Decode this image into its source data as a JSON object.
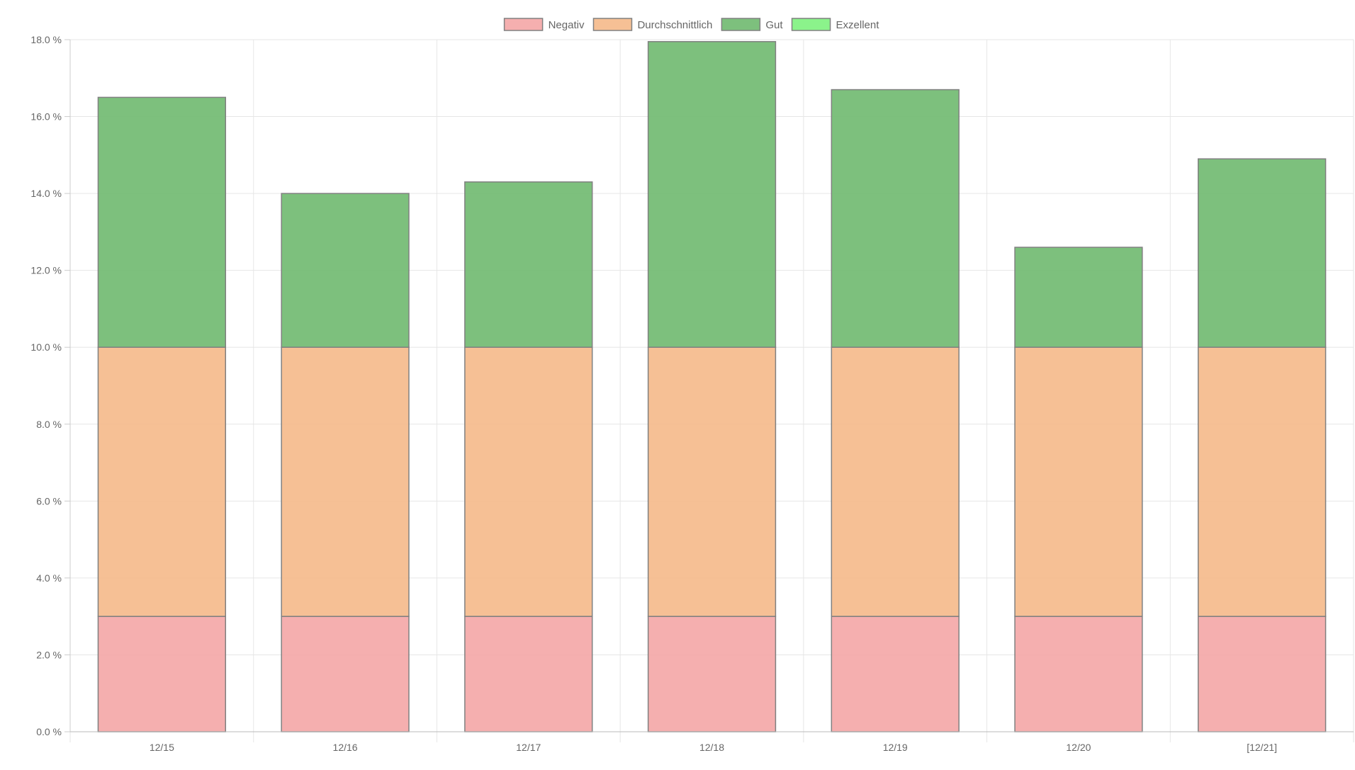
{
  "chart_data": {
    "type": "bar",
    "stacked": true,
    "categories": [
      "12/15",
      "12/16",
      "12/17",
      "12/18",
      "12/19",
      "12/20",
      "[12/21]"
    ],
    "series": [
      {
        "name": "Negativ",
        "color": "#f4a6a6",
        "values": [
          3.0,
          3.0,
          3.0,
          3.0,
          3.0,
          3.0,
          3.0
        ]
      },
      {
        "name": "Durchschnittlich",
        "color": "#f5b98a",
        "values": [
          7.0,
          7.0,
          7.0,
          7.0,
          7.0,
          7.0,
          7.0
        ]
      },
      {
        "name": "Gut",
        "color": "#6fb96f",
        "values": [
          6.5,
          4.0,
          4.3,
          7.95,
          6.7,
          2.6,
          4.9
        ]
      },
      {
        "name": "Exzellent",
        "color": "#7ef27e",
        "values": [
          0,
          0,
          0,
          0,
          0,
          0,
          0
        ]
      }
    ],
    "y_ticks": [
      "0.0 %",
      "2.0 %",
      "4.0 %",
      "6.0 %",
      "8.0 %",
      "10.0 %",
      "12.0 %",
      "14.0 %",
      "16.0 %",
      "18.0 %"
    ],
    "ylim": [
      0,
      18
    ],
    "ytick_step": 2,
    "grid": true,
    "legend_position": "top-center",
    "title": "",
    "xlabel": "",
    "ylabel": ""
  }
}
